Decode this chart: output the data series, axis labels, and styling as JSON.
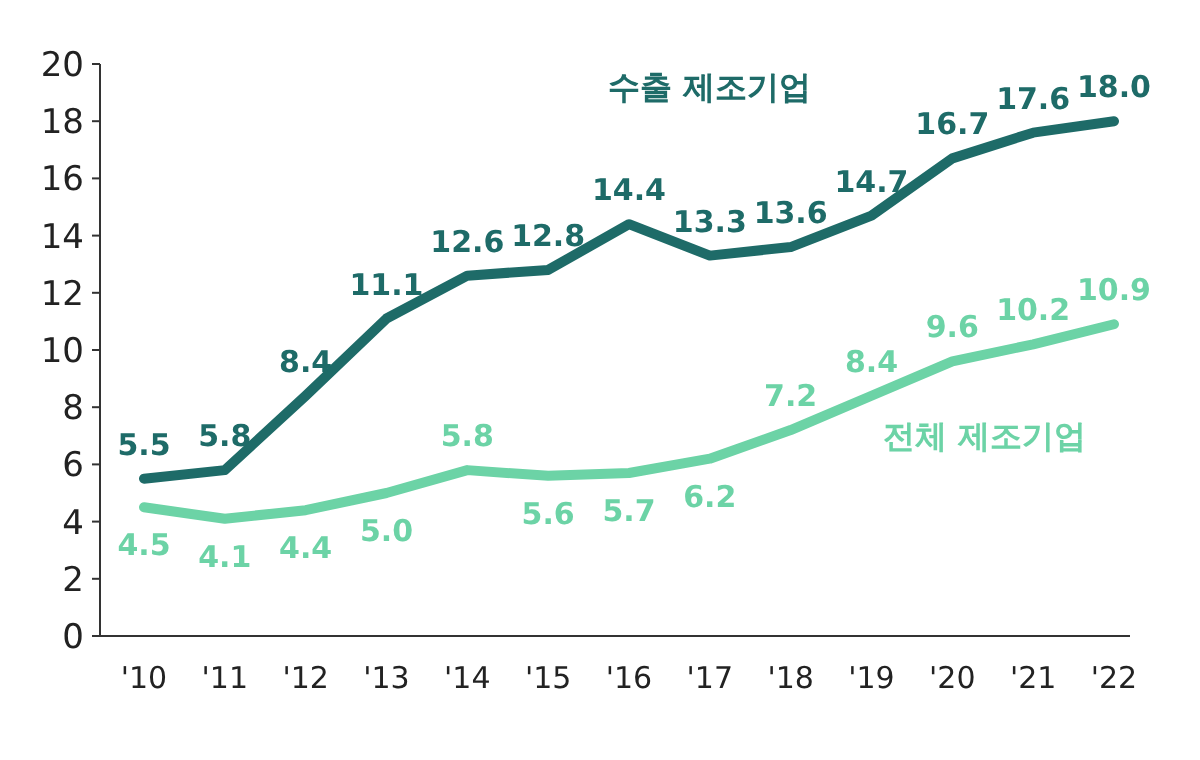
{
  "chart_data": {
    "type": "line",
    "categories": [
      "'10",
      "'11",
      "'12",
      "'13",
      "'14",
      "'15",
      "'16",
      "'17",
      "'18",
      "'19",
      "'20",
      "'21",
      "'22"
    ],
    "ylim": [
      0,
      20
    ],
    "yticks": [
      0,
      2,
      4,
      6,
      8,
      10,
      12,
      14,
      16,
      18,
      20
    ],
    "grid": false,
    "marker": "none",
    "line_style": "solid",
    "series": [
      {
        "name": "수출 제조기업",
        "color": "#1e6b68",
        "values": [
          5.5,
          5.8,
          8.4,
          11.1,
          12.6,
          12.8,
          14.4,
          13.3,
          13.6,
          14.7,
          16.7,
          17.6,
          18.0
        ],
        "value_labels": [
          "5.5",
          "5.8",
          "8.4",
          "11.1",
          "12.6",
          "12.8",
          "14.4",
          "13.3",
          "13.6",
          "14.7",
          "16.7",
          "17.6",
          "18.0"
        ]
      },
      {
        "name": "전체 제조기업",
        "color": "#6cd3a6",
        "values": [
          4.5,
          4.1,
          4.4,
          5.0,
          5.8,
          5.6,
          5.7,
          6.2,
          7.2,
          8.4,
          9.6,
          10.2,
          10.9
        ],
        "value_labels": [
          "4.5",
          "4.1",
          "4.4",
          "5.0",
          "5.8",
          "5.6",
          "5.7",
          "6.2",
          "7.2",
          "8.4",
          "9.6",
          "10.2",
          "10.9"
        ]
      }
    ]
  }
}
